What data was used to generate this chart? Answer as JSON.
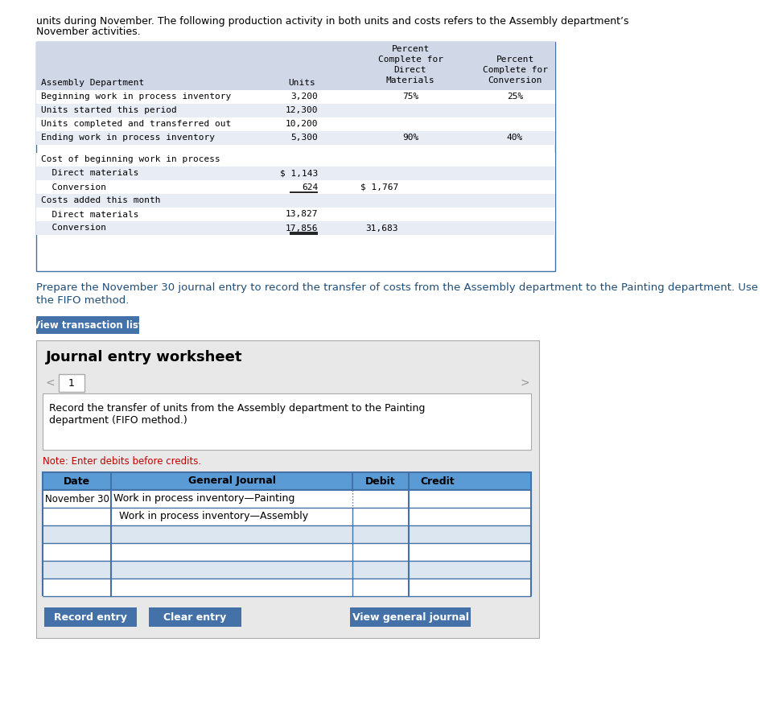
{
  "top_text_line1": "units during November. The following production activity in both units and costs refers to the Assembly department’s",
  "top_text_line2": "November activities.",
  "table1_rows": [
    [
      "Beginning work in process inventory",
      "3,200",
      "75%",
      "25%"
    ],
    [
      "Units started this period",
      "12,300",
      "",
      ""
    ],
    [
      "Units completed and transferred out",
      "10,200",
      "",
      ""
    ],
    [
      "Ending work in process inventory",
      "5,300",
      "90%",
      "40%"
    ]
  ],
  "cost_section": [
    [
      "Cost of beginning work in process",
      "",
      ""
    ],
    [
      "  Direct materials",
      "$ 1,143",
      ""
    ],
    [
      "  Conversion",
      "624",
      "$ 1,767"
    ],
    [
      "Costs added this month",
      "",
      ""
    ],
    [
      "  Direct materials",
      "13,827",
      ""
    ],
    [
      "  Conversion",
      "17,856",
      "31,683"
    ]
  ],
  "prepare_text_line1": "Prepare the November 30 journal entry to record the transfer of costs from the Assembly department to the Painting department. Use",
  "prepare_text_line2": "the FIFO method.",
  "btn_view_transaction": "View transaction list",
  "journal_title": "Journal entry worksheet",
  "tab_number": "1",
  "instruction_line1": "Record the transfer of units from the Assembly department to the Painting",
  "instruction_line2": "department (FIFO method.)",
  "note": "Note: Enter debits before credits.",
  "journal_headers": [
    "Date",
    "General Journal",
    "Debit",
    "Credit"
  ],
  "journal_rows": [
    [
      "November 30",
      "Work in process inventory—Painting",
      "",
      ""
    ],
    [
      "",
      "Work in process inventory—Assembly",
      "",
      ""
    ],
    [
      "",
      "",
      "",
      ""
    ],
    [
      "",
      "",
      "",
      ""
    ],
    [
      "",
      "",
      "",
      ""
    ],
    [
      "",
      "",
      "",
      ""
    ]
  ],
  "btn_record": "Record entry",
  "btn_clear": "Clear entry",
  "btn_view_journal": "View general journal",
  "colors": {
    "header_bg": "#d0d8e8",
    "alt_row_bg": "#e8ecf4",
    "white": "#ffffff",
    "blue_btn": "#4472a8",
    "blue_dark": "#1f3864",
    "blue_text": "#1f4e79",
    "red_text": "#c00000",
    "black": "#000000",
    "border_blue": "#4472a8",
    "outer_border": "#4472a8",
    "panel_bg": "#e8e8e8",
    "tab_bg": "#ffffff",
    "gray_border": "#aaaaaa",
    "journal_header_bg": "#5b9bd5",
    "journal_row_alt": "#dce6f1",
    "mono_text": "#000000"
  },
  "fig_width": 8.75,
  "fig_height": 8.55
}
